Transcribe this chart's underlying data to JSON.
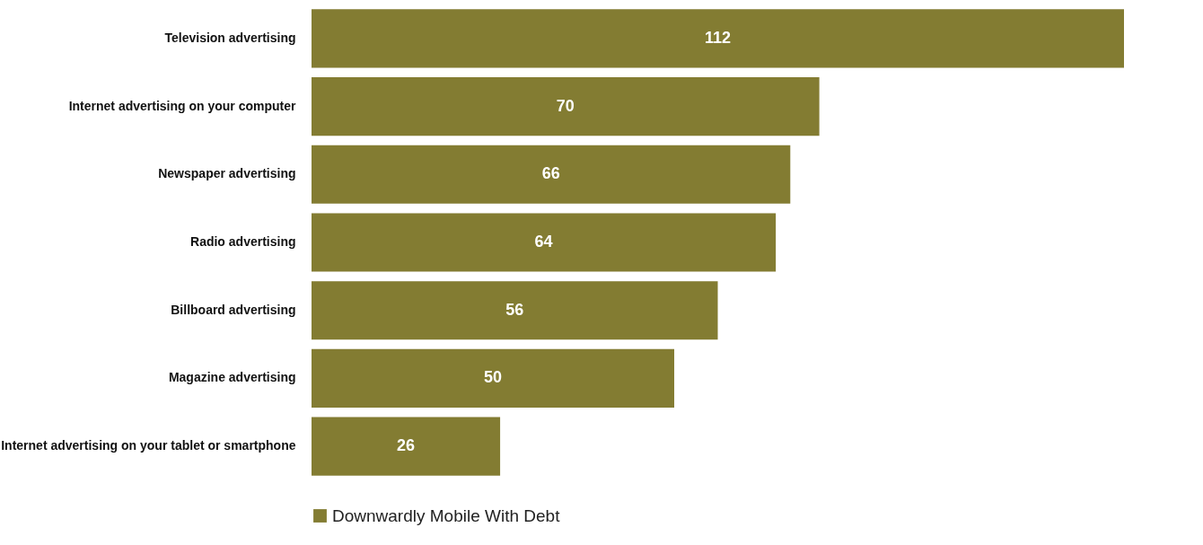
{
  "chart_data": {
    "type": "bar",
    "orientation": "horizontal",
    "categories": [
      "Television advertising",
      "Internet advertising on your computer",
      "Newspaper advertising",
      "Radio advertising",
      "Billboard advertising",
      "Magazine advertising",
      "Internet advertising on your tablet or smartphone"
    ],
    "series": [
      {
        "name": "Downwardly Mobile With Debt",
        "color": "#837c32",
        "values": [
          112,
          70,
          66,
          64,
          56,
          50,
          26
        ]
      }
    ],
    "data_labels": true,
    "legend": "bottom"
  }
}
